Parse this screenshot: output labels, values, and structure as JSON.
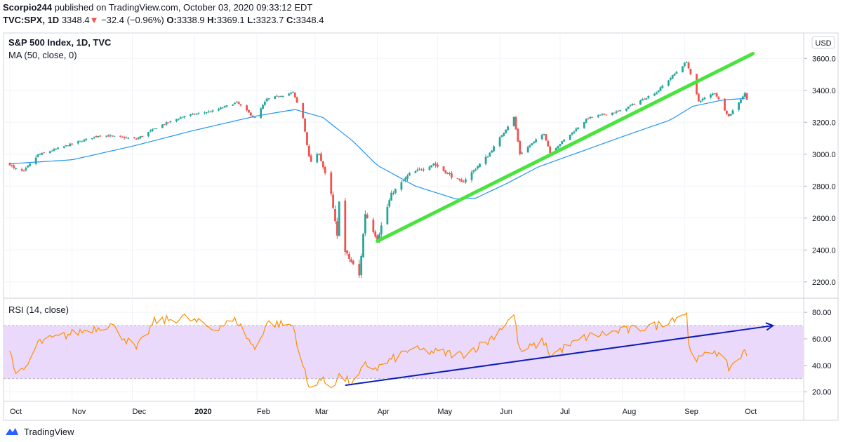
{
  "header": {
    "author": "Scorpio244",
    "published_text": "published on TradingView.com, October 03, 2020 09:33:12 EDT",
    "symbol": "TVC:SPX, 1D",
    "last": "3348.4",
    "change_arrow": "▼",
    "change": "−32.4 (−0.96%)",
    "o_label": "O:",
    "o_value": "3338.9",
    "h_label": "H:",
    "h_value": "3369.1",
    "l_label": "L:",
    "l_value": "3323.7",
    "c_label": "C:",
    "c_value": "3348.4"
  },
  "footer": {
    "brand": "TradingView"
  },
  "colors": {
    "up": "#26a69a",
    "down": "#ef5350",
    "ma": "#2196f3",
    "rsi": "#ff8f00",
    "rsi_band": "#ead9fb",
    "trend_green": "#4ae33e",
    "trend_blue": "#0d1cb7"
  },
  "chart_data": [
    {
      "type": "candlestick",
      "title": "S&P 500 Index, 1D, TVC",
      "indicator": "MA (50, close, 0)",
      "currency": "USD",
      "ylim": [
        2120,
        3720
      ],
      "yticks": [
        "3600.0",
        "3400.0",
        "3200.0",
        "3000.0",
        "2800.0",
        "2600.0",
        "2400.0",
        "2200.0"
      ],
      "x_labels": [
        "Oct",
        "Nov",
        "Dec",
        "2020",
        "Feb",
        "Mar",
        "Apr",
        "May",
        "Jun",
        "Jul",
        "Aug",
        "Sep",
        "Oct"
      ],
      "close_anchors": [
        [
          "2019-10-01",
          2940
        ],
        [
          "2019-10-03",
          2910
        ],
        [
          "2019-10-08",
          2890
        ],
        [
          "2019-10-15",
          2995
        ],
        [
          "2019-11-01",
          3065
        ],
        [
          "2019-11-15",
          3120
        ],
        [
          "2019-12-03",
          3095
        ],
        [
          "2019-12-15",
          3180
        ],
        [
          "2019-12-27",
          3240
        ],
        [
          "2020-01-10",
          3270
        ],
        [
          "2020-01-22",
          3325
        ],
        [
          "2020-01-31",
          3225
        ],
        [
          "2020-02-06",
          3345
        ],
        [
          "2020-02-19",
          3386
        ],
        [
          "2020-02-24",
          3225
        ],
        [
          "2020-02-27",
          2980
        ],
        [
          "2020-02-28",
          2954
        ],
        [
          "2020-03-03",
          3005
        ],
        [
          "2020-03-09",
          2746
        ],
        [
          "2020-03-12",
          2480
        ],
        [
          "2020-03-13",
          2711
        ],
        [
          "2020-03-16",
          2386
        ],
        [
          "2020-03-20",
          2305
        ],
        [
          "2020-03-23",
          2237
        ],
        [
          "2020-03-26",
          2630
        ],
        [
          "2020-04-01",
          2470
        ],
        [
          "2020-04-08",
          2750
        ],
        [
          "2020-04-17",
          2875
        ],
        [
          "2020-04-29",
          2940
        ],
        [
          "2020-05-13",
          2820
        ],
        [
          "2020-05-26",
          2990
        ],
        [
          "2020-06-08",
          3232
        ],
        [
          "2020-06-11",
          3002
        ],
        [
          "2020-06-23",
          3131
        ],
        [
          "2020-06-26",
          3009
        ],
        [
          "2020-07-15",
          3227
        ],
        [
          "2020-07-31",
          3271
        ],
        [
          "2020-08-18",
          3389
        ],
        [
          "2020-09-02",
          3580
        ],
        [
          "2020-09-08",
          3332
        ],
        [
          "2020-09-16",
          3385
        ],
        [
          "2020-09-23",
          3237
        ],
        [
          "2020-10-01",
          3381
        ],
        [
          "2020-10-02",
          3348
        ]
      ],
      "ma_points": [
        [
          "2019-10-01",
          2940
        ],
        [
          "2019-11-01",
          2965
        ],
        [
          "2019-12-01",
          3050
        ],
        [
          "2020-01-01",
          3150
        ],
        [
          "2020-02-01",
          3240
        ],
        [
          "2020-02-20",
          3280
        ],
        [
          "2020-03-05",
          3230
        ],
        [
          "2020-03-20",
          3080
        ],
        [
          "2020-04-01",
          2930
        ],
        [
          "2020-04-20",
          2800
        ],
        [
          "2020-05-10",
          2720
        ],
        [
          "2020-05-20",
          2725
        ],
        [
          "2020-06-05",
          2820
        ],
        [
          "2020-06-20",
          2920
        ],
        [
          "2020-07-10",
          3010
        ],
        [
          "2020-08-01",
          3110
        ],
        [
          "2020-08-25",
          3215
        ],
        [
          "2020-09-05",
          3300
        ],
        [
          "2020-09-20",
          3340
        ],
        [
          "2020-10-02",
          3350
        ]
      ],
      "trendline": [
        [
          "2020-04-01",
          2455
        ],
        [
          "2020-10-05",
          3630
        ]
      ]
    },
    {
      "type": "line",
      "title": "RSI (14, close)",
      "ylim": [
        14,
        88
      ],
      "band": [
        30,
        70
      ],
      "yticks": [
        "80.00",
        "60.00",
        "40.00",
        "20.00"
      ],
      "values_anchors": [
        [
          "2019-10-01",
          52
        ],
        [
          "2019-10-03",
          38
        ],
        [
          "2019-10-08",
          34
        ],
        [
          "2019-10-15",
          57
        ],
        [
          "2019-11-01",
          64
        ],
        [
          "2019-11-20",
          71
        ],
        [
          "2019-12-03",
          52
        ],
        [
          "2019-12-12",
          73
        ],
        [
          "2019-12-27",
          76
        ],
        [
          "2020-01-10",
          68
        ],
        [
          "2020-01-22",
          74
        ],
        [
          "2020-01-31",
          52
        ],
        [
          "2020-02-06",
          72
        ],
        [
          "2020-02-19",
          70
        ],
        [
          "2020-02-24",
          40
        ],
        [
          "2020-02-27",
          22
        ],
        [
          "2020-03-03",
          30
        ],
        [
          "2020-03-09",
          24
        ],
        [
          "2020-03-13",
          32
        ],
        [
          "2020-03-20",
          26
        ],
        [
          "2020-03-26",
          40
        ],
        [
          "2020-04-01",
          38
        ],
        [
          "2020-04-17",
          52
        ],
        [
          "2020-05-13",
          48
        ],
        [
          "2020-05-26",
          58
        ],
        [
          "2020-06-08",
          78
        ],
        [
          "2020-06-11",
          50
        ],
        [
          "2020-06-23",
          58
        ],
        [
          "2020-06-26",
          48
        ],
        [
          "2020-07-15",
          62
        ],
        [
          "2020-08-18",
          70
        ],
        [
          "2020-09-02",
          80
        ],
        [
          "2020-09-03",
          55
        ],
        [
          "2020-09-08",
          44
        ],
        [
          "2020-09-16",
          52
        ],
        [
          "2020-09-23",
          38
        ],
        [
          "2020-10-01",
          50
        ],
        [
          "2020-10-02",
          48
        ]
      ],
      "trendline": [
        [
          "2020-03-16",
          25
        ],
        [
          "2020-10-15",
          70
        ]
      ]
    }
  ]
}
